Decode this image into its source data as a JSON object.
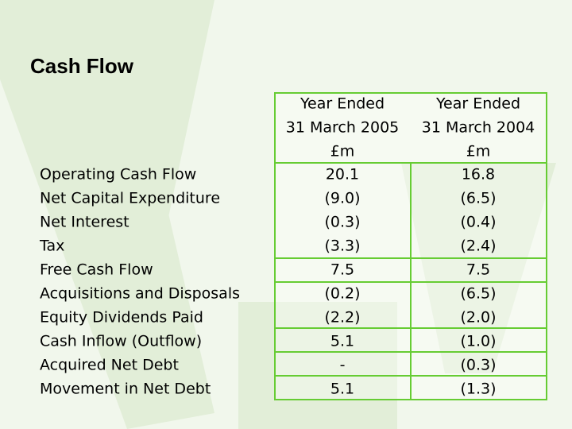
{
  "title": "Cash Flow",
  "table": {
    "header": [
      [
        "Year Ended",
        "31 March 2005",
        "£m"
      ],
      [
        "Year Ended",
        "31 March 2004",
        "£m"
      ]
    ],
    "rows": [
      [
        "Operating Cash Flow",
        "20.1",
        "16.8"
      ],
      [
        "Net Capital Expenditure",
        "(9.0)",
        "(6.5)"
      ],
      [
        "Net Interest",
        "(0.3)",
        "(0.4)"
      ],
      [
        "Tax",
        "(3.3)",
        "(2.4)"
      ],
      [
        "Free Cash Flow",
        "7.5",
        "7.5"
      ],
      [
        "Acquisitions and Disposals",
        "(0.2)",
        "(6.5)"
      ],
      [
        "Equity Dividends Paid",
        "(2.2)",
        "(2.0)"
      ],
      [
        "Cash Inflow (Outflow)",
        "5.1",
        "(1.0)"
      ],
      [
        "Acquired Net Debt",
        "-",
        "(0.3)"
      ],
      [
        "Movement in Net Debt",
        "5.1",
        "(1.3)"
      ]
    ]
  }
}
